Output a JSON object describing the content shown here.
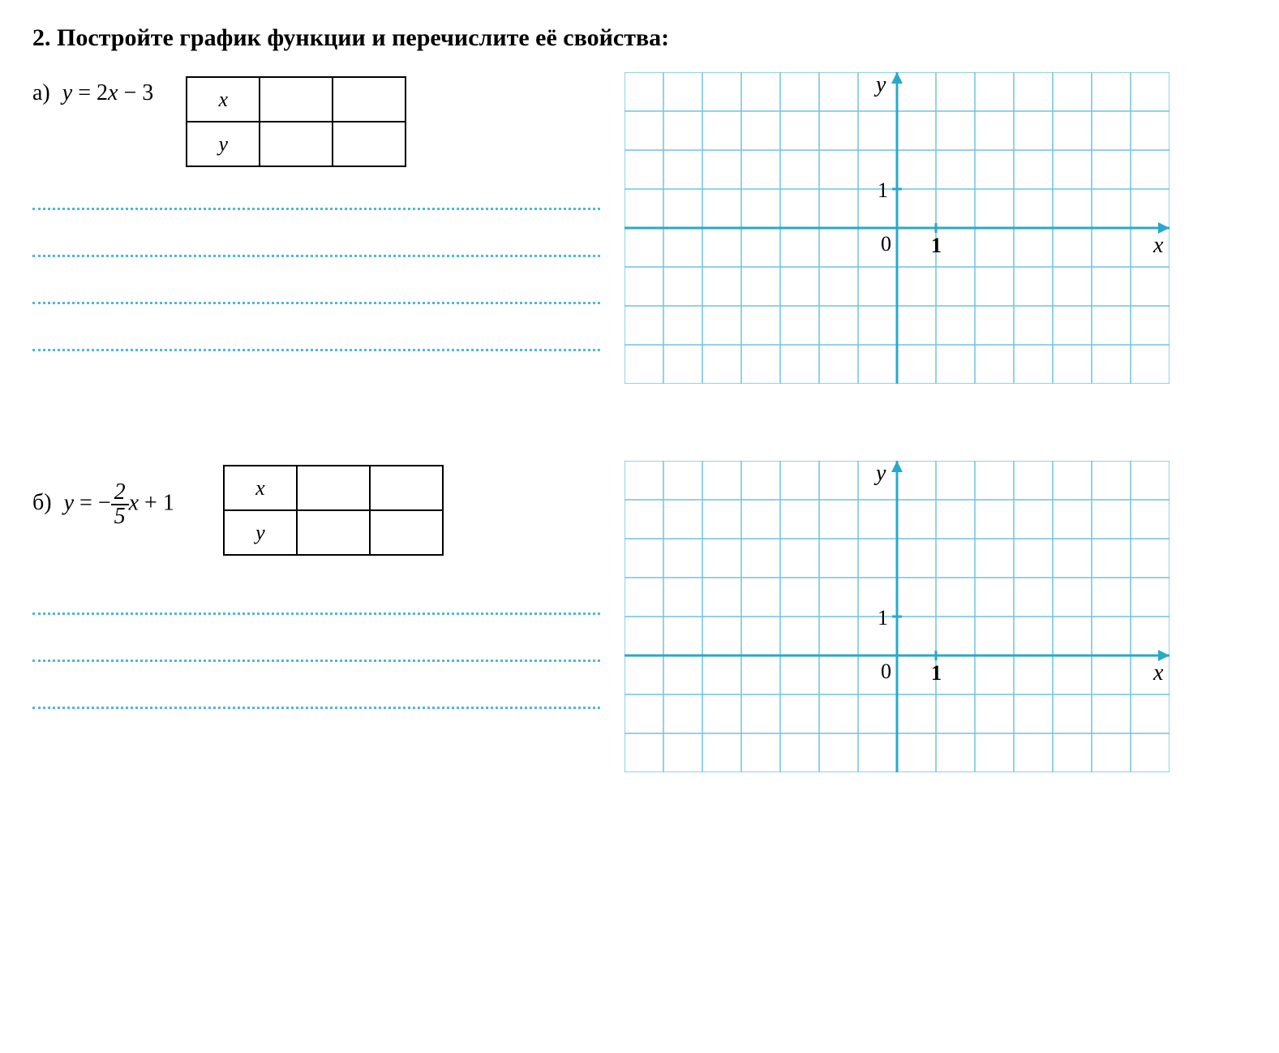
{
  "problem": {
    "number": "2.",
    "text": "Постройте график функции и перечислите её свойства:"
  },
  "subA": {
    "letter": "а)",
    "formula_var": "y",
    "formula_eq": "=",
    "formula_rhs_parts": [
      "2",
      "x",
      " − 3"
    ],
    "table": {
      "row1_header": "x",
      "row2_header": "y"
    },
    "chart": {
      "cell_size": 48,
      "cols": 14,
      "rows": 8,
      "origin_col": 7,
      "origin_row": 4,
      "grid_color": "#6fc4e0",
      "axis_color": "#2aa8c9",
      "label_x": "x",
      "label_y": "y",
      "tick_x": "1",
      "tick_y": "1",
      "origin_label": "0",
      "background": "#ffffff"
    },
    "dotted_line_count": 4,
    "dotted_color": "#4db8d8"
  },
  "subB": {
    "letter": "б)",
    "formula_var": "y",
    "formula_eq": "=",
    "fraction": {
      "num": "2",
      "den": "5"
    },
    "formula_suffix": "x + 1",
    "table": {
      "row1_header": "x",
      "row2_header": "y"
    },
    "chart": {
      "cell_size": 48,
      "cols": 14,
      "rows": 8,
      "origin_col": 7,
      "origin_row": 5,
      "grid_color": "#6fc4e0",
      "axis_color": "#2aa8c9",
      "label_x": "x",
      "label_y": "y",
      "tick_x": "1",
      "tick_y": "1",
      "origin_label": "0",
      "background": "#ffffff"
    },
    "dotted_line_count": 3,
    "dotted_color": "#4db8d8"
  }
}
